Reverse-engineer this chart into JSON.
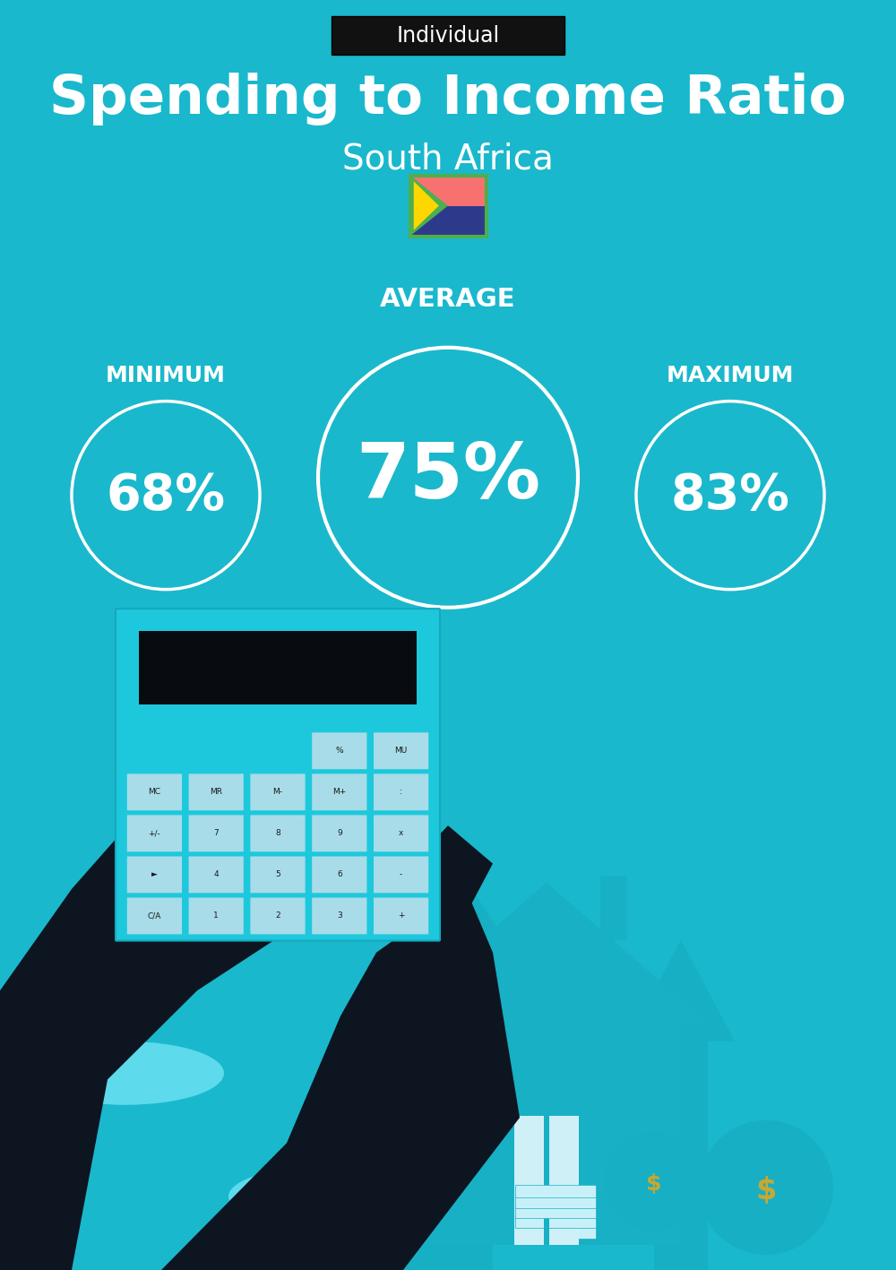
{
  "bg_color": "#1ab8cc",
  "badge_bg": "#111111",
  "badge_text": "Individual",
  "badge_text_color": "#ffffff",
  "title": "Spending to Income Ratio",
  "subtitle": "South Africa",
  "title_color": "#ffffff",
  "subtitle_color": "#ffffff",
  "label_average": "AVERAGE",
  "label_minimum": "MINIMUM",
  "label_maximum": "MAXIMUM",
  "value_min": "68%",
  "value_avg": "75%",
  "value_max": "83%",
  "circle_color": "#ffffff",
  "fig_width": 10.0,
  "fig_height": 14.17,
  "dpi": 100
}
